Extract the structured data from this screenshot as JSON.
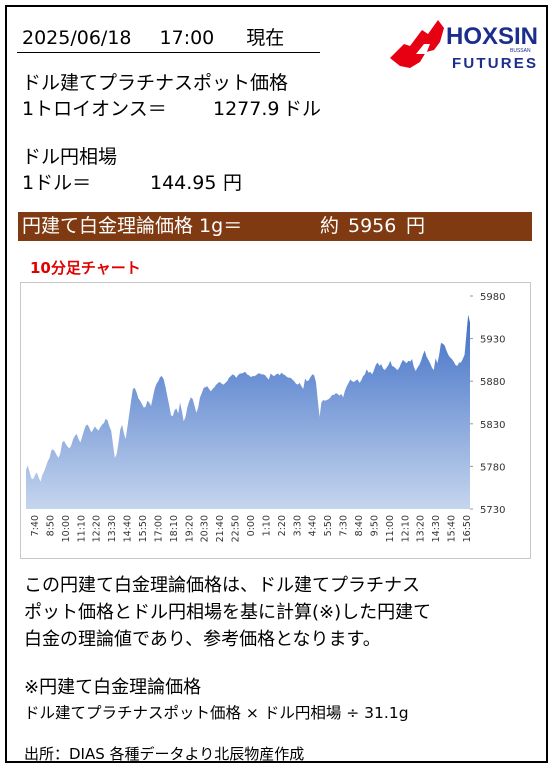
{
  "header": {
    "date": "2025/06/18",
    "time": "17:00",
    "label_now": "現在"
  },
  "logo": {
    "brand": "HOXSIN",
    "sub": "FUTURES",
    "small": "BUSSAN",
    "brand_color": "#1c2e8c",
    "mark_color": "#e60012"
  },
  "platinum": {
    "title": "ドル建てプラチナスポット価格",
    "unit_label": "1トロイオンス＝",
    "value": "1277.9",
    "currency": "ドル"
  },
  "fx": {
    "title": "ドル円相場",
    "unit_label": "1ドル＝",
    "value": "144.95",
    "currency": "円"
  },
  "banner": {
    "label": "円建て白金理論価格 1g＝",
    "approx": "約",
    "value": "5956",
    "currency": "円",
    "bg_color": "#7f3a12"
  },
  "chart_title": "10分足チャート",
  "chart_data": {
    "type": "area",
    "title": "",
    "ylim": [
      5730,
      5980
    ],
    "yticks": [
      5730,
      5780,
      5830,
      5880,
      5930,
      5980
    ],
    "x_tick_labels": [
      "7:40",
      "8:50",
      "10:00",
      "11:10",
      "12:20",
      "13:30",
      "14:40",
      "15:50",
      "17:00",
      "18:10",
      "19:20",
      "20:30",
      "21:40",
      "22:50",
      "0:00",
      "1:10",
      "2:20",
      "3:30",
      "4:40",
      "5:50",
      "7:30",
      "8:40",
      "9:50",
      "11:00",
      "12:10",
      "13:20",
      "14:30",
      "15:40",
      "16:50"
    ],
    "fill_color_top": "#3f6fc6",
    "fill_color_bottom": "#c6d5ee",
    "values": [
      5776,
      5781,
      5773,
      5766,
      5765,
      5770,
      5773,
      5767,
      5762,
      5770,
      5774,
      5780,
      5786,
      5790,
      5799,
      5800,
      5797,
      5793,
      5790,
      5796,
      5808,
      5810,
      5806,
      5803,
      5801,
      5805,
      5812,
      5816,
      5818,
      5812,
      5808,
      5815,
      5822,
      5828,
      5829,
      5825,
      5820,
      5823,
      5827,
      5824,
      5822,
      5826,
      5829,
      5831,
      5836,
      5834,
      5827,
      5822,
      5806,
      5790,
      5794,
      5807,
      5823,
      5829,
      5819,
      5812,
      5827,
      5842,
      5857,
      5871,
      5872,
      5867,
      5860,
      5857,
      5853,
      5849,
      5850,
      5857,
      5855,
      5851,
      5861,
      5871,
      5877,
      5880,
      5885,
      5886,
      5882,
      5873,
      5862,
      5852,
      5840,
      5839,
      5846,
      5848,
      5842,
      5855,
      5845,
      5833,
      5838,
      5849,
      5856,
      5861,
      5859,
      5851,
      5843,
      5849,
      5861,
      5866,
      5872,
      5873,
      5874,
      5871,
      5868,
      5871,
      5873,
      5876,
      5878,
      5879,
      5877,
      5876,
      5878,
      5880,
      5884,
      5886,
      5888,
      5887,
      5884,
      5887,
      5889,
      5889,
      5890,
      5891,
      5888,
      5887,
      5885,
      5886,
      5886,
      5887,
      5889,
      5889,
      5888,
      5888,
      5887,
      5884,
      5882,
      5889,
      5887,
      5886,
      5888,
      5889,
      5887,
      5890,
      5888,
      5887,
      5885,
      5884,
      5884,
      5882,
      5880,
      5877,
      5876,
      5878,
      5874,
      5871,
      5883,
      5880,
      5881,
      5885,
      5888,
      5887,
      5879,
      5858,
      5838,
      5855,
      5858,
      5857,
      5858,
      5859,
      5861,
      5864,
      5864,
      5866,
      5865,
      5863,
      5865,
      5861,
      5869,
      5874,
      5878,
      5882,
      5880,
      5879,
      5881,
      5882,
      5878,
      5881,
      5886,
      5888,
      5894,
      5890,
      5891,
      5888,
      5893,
      5899,
      5902,
      5898,
      5900,
      5895,
      5893,
      5896,
      5899,
      5904,
      5898,
      5897,
      5895,
      5893,
      5896,
      5901,
      5905,
      5903,
      5901,
      5904,
      5903,
      5906,
      5897,
      5892,
      5896,
      5899,
      5904,
      5911,
      5916,
      5909,
      5905,
      5901,
      5896,
      5893,
      5907,
      5901,
      5911,
      5925,
      5924,
      5922,
      5916,
      5911,
      5908,
      5906,
      5903,
      5899,
      5898,
      5902,
      5902,
      5906,
      5911,
      5935,
      5958,
      5949
    ]
  },
  "description": [
    "この円建て白金理論価格は、ドル建てプラチナス",
    "ポット価格とドル円相場を基に計算(※)した円建て",
    "白金の理論値であり、参考価格となります。"
  ],
  "note": {
    "title": "※円建て白金理論価格",
    "formula": "ドル建てプラチナスポット価格 × ドル円相場 ÷ 31.1g"
  },
  "source": "出所：DIAS  各種データより北辰物産作成"
}
